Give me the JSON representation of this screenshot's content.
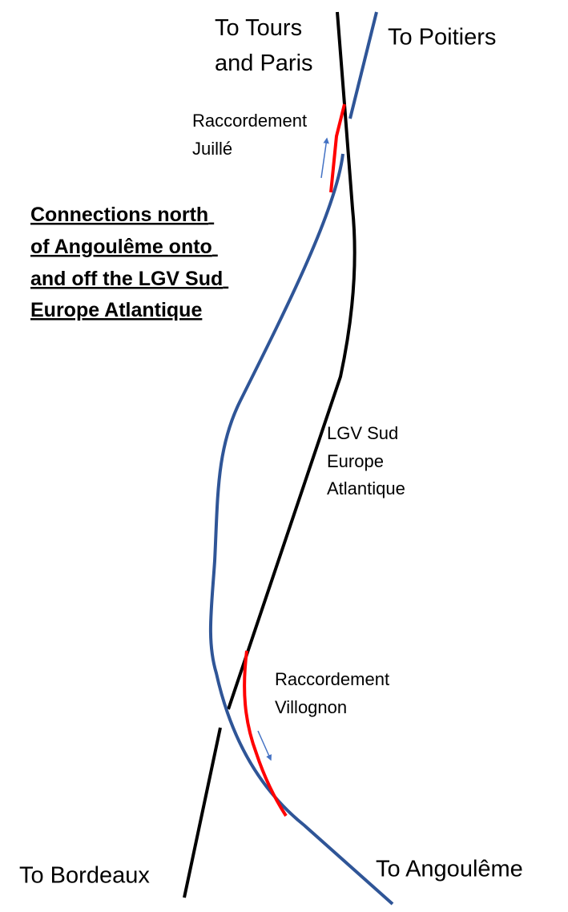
{
  "labels": {
    "tours_paris": [
      "To Tours",
      "and Paris"
    ],
    "poitiers": "To Poitiers",
    "juille": [
      "Raccordement",
      "Juillé"
    ],
    "title": [
      "Connections north",
      "of Angoulême onto",
      "and off the LGV Sud",
      "Europe Atlantique"
    ],
    "lgv": [
      "LGV Sud",
      "Europe",
      "Atlantique"
    ],
    "villognon": [
      "Raccordement",
      "Villognon"
    ],
    "bordeaux": "To Bordeaux",
    "angouleme": "To Angoulême"
  }
}
